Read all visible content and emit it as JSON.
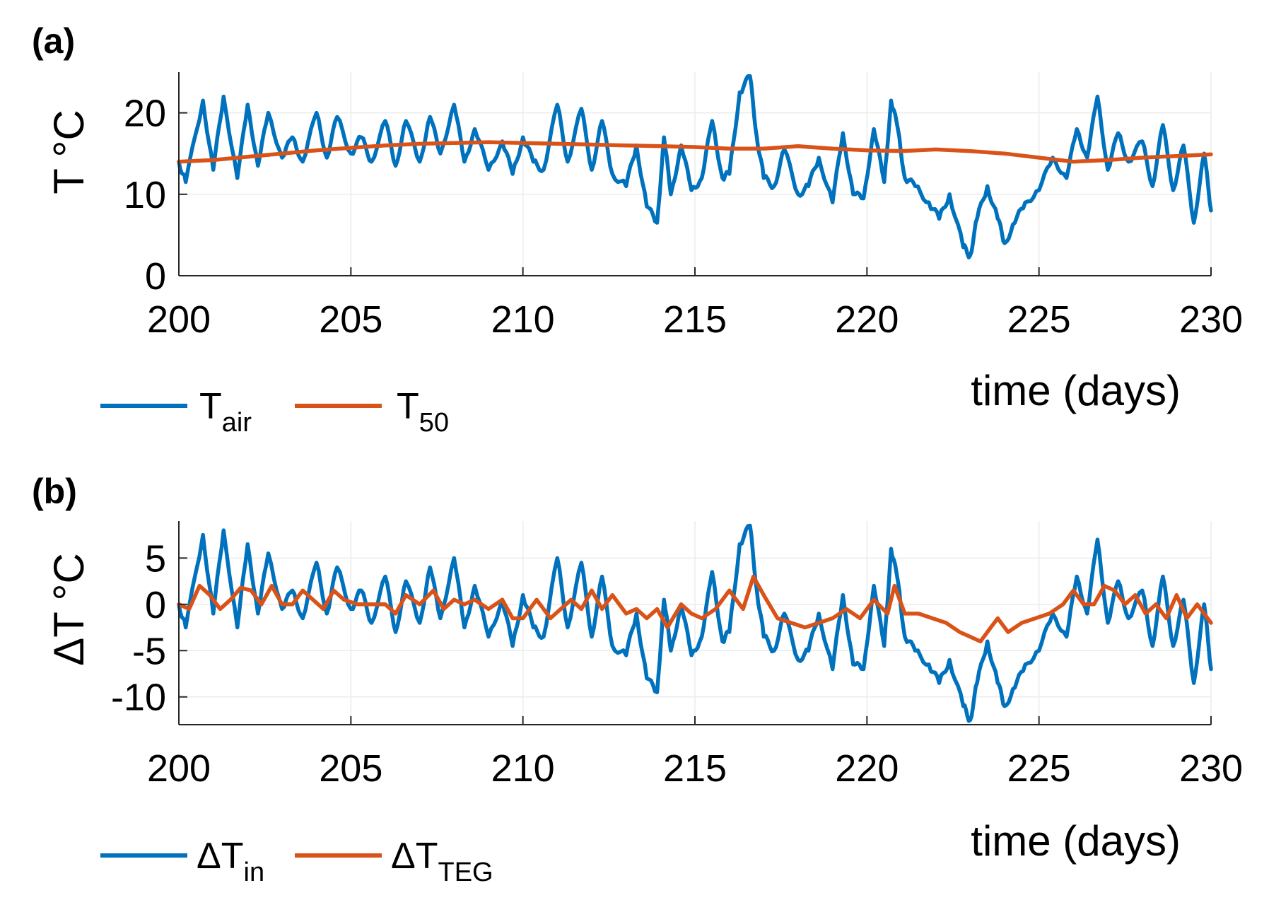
{
  "chart_data": [
    {
      "panel": "(a)",
      "type": "line",
      "xlabel": "time (days)",
      "ylabel": "T °C",
      "xlim": [
        200,
        230
      ],
      "ylim": [
        0,
        25
      ],
      "xticks": [
        200,
        205,
        210,
        215,
        220,
        225,
        230
      ],
      "yticks": [
        0,
        10,
        20
      ],
      "grid": true,
      "legend": "bottom-left, below axes",
      "series": [
        {
          "name": "T_air",
          "legend_main": "T",
          "legend_sub": "air",
          "color": "#0072BD",
          "noisy": true,
          "x": [
            200,
            200.2,
            200.7,
            201.0,
            201.3,
            201.7,
            202.0,
            202.3,
            202.6,
            203.0,
            203.3,
            203.6,
            204.0,
            204.3,
            204.6,
            205.0,
            205.3,
            205.6,
            206.0,
            206.3,
            206.6,
            207.0,
            207.3,
            207.6,
            208.0,
            208.3,
            208.6,
            209.0,
            209.4,
            209.7,
            210.0,
            210.3,
            210.6,
            211.0,
            211.3,
            211.7,
            212.0,
            212.3,
            212.6,
            213.0,
            213.3,
            213.6,
            213.9,
            214.1,
            214.3,
            214.6,
            214.9,
            215.2,
            215.5,
            215.8,
            216.0,
            216.3,
            216.6,
            216.8,
            217.0,
            217.3,
            217.6,
            218.0,
            218.3,
            218.6,
            219.0,
            219.3,
            219.6,
            219.9,
            220.2,
            220.5,
            220.7,
            220.9,
            221.1,
            221.4,
            221.8,
            222.1,
            222.4,
            222.8,
            223.0,
            223.2,
            223.5,
            223.8,
            224.0,
            224.3,
            224.6,
            225.0,
            225.4,
            225.8,
            226.1,
            226.4,
            226.7,
            227.0,
            227.3,
            227.6,
            228.0,
            228.3,
            228.6,
            228.9,
            229.2,
            229.5,
            229.8,
            230.0
          ],
          "y": [
            14,
            11.5,
            21.5,
            13,
            22,
            12,
            21,
            13.5,
            20,
            14.5,
            17,
            14,
            20,
            14.5,
            19.5,
            15,
            17,
            14,
            19,
            13.5,
            19,
            14,
            19.5,
            15,
            21,
            14,
            18,
            13,
            16.5,
            12.5,
            17,
            14,
            13,
            21,
            14,
            20.5,
            13,
            19,
            12.5,
            11,
            16,
            8.5,
            6.5,
            17,
            10,
            16,
            10.5,
            12,
            19,
            12,
            12.5,
            22.5,
            24.5,
            17,
            12,
            11,
            15.5,
            10,
            11,
            14.5,
            9,
            17.5,
            10,
            9.5,
            18,
            11.5,
            21.5,
            18,
            12,
            11,
            9,
            7,
            10,
            3.5,
            2.5,
            7,
            11,
            7,
            4,
            6.5,
            9,
            10.5,
            14.5,
            12,
            18,
            14.5,
            22,
            13,
            17.5,
            14,
            16.5,
            11,
            18.5,
            10.5,
            16,
            6.5,
            15,
            8
          ]
        },
        {
          "name": "T_50",
          "legend_main": "T",
          "legend_sub": "50",
          "color": "#D95319",
          "noisy": false,
          "x": [
            200,
            201,
            202,
            203,
            204,
            205,
            206,
            207,
            208,
            209,
            210,
            211,
            212,
            213,
            214,
            215,
            216,
            217,
            218,
            219,
            220,
            221,
            222,
            223,
            224,
            225,
            226,
            227,
            228,
            229,
            230
          ],
          "y": [
            14.0,
            14.2,
            14.6,
            15.0,
            15.4,
            15.7,
            16.0,
            16.2,
            16.3,
            16.4,
            16.3,
            16.2,
            16.1,
            16.0,
            15.9,
            15.8,
            15.6,
            15.6,
            15.9,
            15.6,
            15.4,
            15.3,
            15.5,
            15.3,
            15.0,
            14.5,
            14.0,
            14.2,
            14.5,
            14.7,
            14.9
          ]
        }
      ]
    },
    {
      "panel": "(b)",
      "type": "line",
      "xlabel": "time (days)",
      "ylabel": "ΔT °C",
      "xlim": [
        200,
        230
      ],
      "ylim": [
        -13,
        9
      ],
      "xticks": [
        200,
        205,
        210,
        215,
        220,
        225,
        230
      ],
      "yticks": [
        5,
        0,
        -5,
        -10
      ],
      "grid": true,
      "legend": "bottom-left, below axes",
      "series": [
        {
          "name": "ΔT_in",
          "legend_main": "ΔT",
          "legend_sub": "in",
          "color": "#0072BD",
          "noisy": true,
          "x": [
            200,
            200.2,
            200.7,
            201.0,
            201.3,
            201.7,
            202.0,
            202.3,
            202.6,
            203.0,
            203.3,
            203.6,
            204.0,
            204.3,
            204.6,
            205.0,
            205.3,
            205.6,
            206.0,
            206.3,
            206.6,
            207.0,
            207.3,
            207.6,
            208.0,
            208.3,
            208.6,
            209.0,
            209.4,
            209.7,
            210.0,
            210.3,
            210.6,
            211.0,
            211.3,
            211.7,
            212.0,
            212.3,
            212.6,
            213.0,
            213.3,
            213.6,
            213.9,
            214.1,
            214.3,
            214.6,
            214.9,
            215.2,
            215.5,
            215.8,
            216.0,
            216.3,
            216.6,
            216.8,
            217.0,
            217.3,
            217.6,
            218.0,
            218.3,
            218.6,
            219.0,
            219.3,
            219.6,
            219.9,
            220.2,
            220.5,
            220.7,
            220.9,
            221.1,
            221.4,
            221.8,
            222.1,
            222.4,
            222.8,
            223.0,
            223.2,
            223.5,
            223.8,
            224.0,
            224.3,
            224.6,
            225.0,
            225.4,
            225.8,
            226.1,
            226.4,
            226.7,
            227.0,
            227.3,
            227.6,
            228.0,
            228.3,
            228.6,
            228.9,
            229.2,
            229.5,
            229.8,
            230.0
          ],
          "y": [
            0,
            -2.5,
            7.5,
            -1,
            8,
            -2.5,
            6.5,
            -1,
            5.5,
            -0.5,
            1.5,
            -1.5,
            4.5,
            -1,
            4,
            -0.5,
            1.5,
            -2,
            3,
            -3,
            2.5,
            -2,
            4,
            -1.5,
            5,
            -2.5,
            2,
            -3.5,
            0.5,
            -4.5,
            1,
            -2.5,
            -3.5,
            5,
            -2.5,
            4.5,
            -3.5,
            3,
            -4.5,
            -5.5,
            -1,
            -8,
            -9.5,
            0.5,
            -5,
            0,
            -5.5,
            -3.5,
            3.5,
            -4,
            -3,
            6.5,
            8.5,
            1.5,
            -3.5,
            -5,
            -1,
            -6,
            -5,
            -1,
            -7,
            1,
            -6.5,
            -7,
            2,
            -4.5,
            6,
            2.5,
            -3.5,
            -5,
            -6.5,
            -8.5,
            -6,
            -11,
            -12.5,
            -8.5,
            -4,
            -8.5,
            -11,
            -9,
            -6.5,
            -5,
            -1,
            -3.5,
            3,
            -1,
            7,
            -2,
            2.5,
            -1.5,
            1.5,
            -4.5,
            3,
            -4.5,
            0.5,
            -8.5,
            0,
            -7
          ]
        },
        {
          "name": "ΔT_TEG",
          "legend_main": "ΔT",
          "legend_sub": "TEG",
          "color": "#D95319",
          "noisy": false,
          "x": [
            200,
            200.3,
            200.6,
            200.9,
            201.2,
            201.5,
            201.8,
            202.1,
            202.4,
            202.7,
            203.0,
            203.3,
            203.6,
            203.9,
            204.2,
            204.5,
            204.8,
            205.2,
            205.6,
            206.0,
            206.3,
            206.6,
            207.0,
            207.4,
            207.7,
            208.0,
            208.3,
            208.6,
            209.0,
            209.4,
            209.7,
            210.0,
            210.4,
            210.8,
            211.1,
            211.4,
            211.7,
            212.0,
            212.3,
            212.6,
            213.0,
            213.3,
            213.6,
            213.9,
            214.2,
            214.6,
            214.9,
            215.2,
            215.6,
            216.0,
            216.4,
            216.7,
            217.0,
            217.4,
            217.8,
            218.2,
            218.6,
            219.0,
            219.4,
            219.8,
            220.2,
            220.6,
            220.8,
            221.1,
            221.5,
            221.9,
            222.3,
            222.7,
            223.0,
            223.3,
            223.6,
            223.8,
            224.1,
            224.5,
            224.9,
            225.3,
            225.7,
            226.0,
            226.3,
            226.6,
            226.9,
            227.2,
            227.5,
            227.8,
            228.1,
            228.4,
            228.7,
            229.0,
            229.3,
            229.6,
            230.0
          ],
          "y": [
            0,
            -0.5,
            2.0,
            1.0,
            -0.5,
            0.5,
            1.8,
            1.5,
            0.0,
            2.0,
            0.0,
            0.0,
            1.5,
            0.5,
            -0.5,
            1.5,
            0.5,
            0.0,
            0.0,
            0.0,
            -1.0,
            1.0,
            0.0,
            1.5,
            -0.5,
            0.5,
            0.0,
            0.5,
            -0.5,
            0.5,
            -1.5,
            -1.5,
            0.5,
            -1.5,
            -0.5,
            0.5,
            -0.5,
            1.5,
            -0.5,
            1.0,
            -1.0,
            -0.5,
            -1.5,
            -0.5,
            -2.5,
            0.0,
            -1.0,
            -1.5,
            -0.5,
            1.5,
            -0.5,
            3.0,
            1.0,
            -1.5,
            -2.0,
            -2.5,
            -2.0,
            -1.5,
            -0.5,
            -1.5,
            0.5,
            -1.0,
            2.0,
            -1.0,
            -1.0,
            -1.5,
            -2.0,
            -3.0,
            -3.5,
            -4.0,
            -2.5,
            -1.5,
            -3.0,
            -2.0,
            -1.5,
            -1.0,
            0.0,
            1.5,
            0.0,
            0.0,
            2.0,
            1.5,
            0.0,
            1.0,
            -1.0,
            0.0,
            -1.5,
            1.0,
            -1.5,
            0.0,
            -2.0
          ]
        }
      ]
    }
  ]
}
